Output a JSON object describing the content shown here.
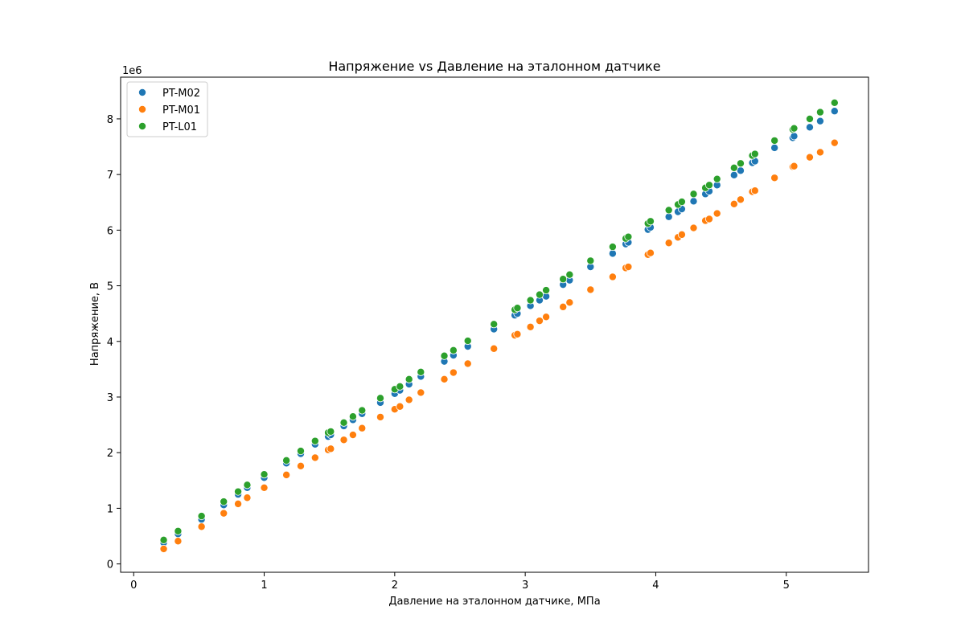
{
  "chart_data": {
    "type": "scatter",
    "title": "Напряжение vs Давление на эталонном датчике",
    "xlabel": "Давление на эталонном датчике, МПа",
    "ylabel": "Напряжение, В",
    "y_offset_label": "1e6",
    "xlim": [
      -0.1,
      5.63
    ],
    "ylim": [
      -150000,
      8750000
    ],
    "xticks": [
      0,
      1,
      2,
      3,
      4,
      5
    ],
    "yticks": [
      0,
      1000000,
      2000000,
      3000000,
      4000000,
      5000000,
      6000000,
      7000000,
      8000000
    ],
    "xtick_labels": [
      "0",
      "1",
      "2",
      "3",
      "4",
      "5"
    ],
    "ytick_labels": [
      "0",
      "1",
      "2",
      "3",
      "4",
      "5",
      "6",
      "7",
      "8"
    ],
    "grid": false,
    "legend": "top-left",
    "x": [
      0.23,
      0.34,
      0.52,
      0.69,
      0.8,
      0.87,
      1.0,
      1.17,
      1.28,
      1.39,
      1.49,
      1.51,
      1.61,
      1.68,
      1.75,
      1.89,
      2.0,
      2.04,
      2.11,
      2.2,
      2.38,
      2.45,
      2.56,
      2.76,
      2.92,
      2.94,
      3.04,
      3.11,
      3.16,
      3.29,
      3.34,
      3.5,
      3.67,
      3.77,
      3.79,
      3.94,
      3.96,
      4.1,
      4.17,
      4.2,
      4.29,
      4.38,
      4.41,
      4.47,
      4.6,
      4.65,
      4.74,
      4.76,
      4.91,
      5.05,
      5.06,
      5.18,
      5.26,
      5.37
    ],
    "series": [
      {
        "name": "PT-M02",
        "color": "#1f77b4",
        "values": [
          380000,
          540000,
          800000,
          1060000,
          1250000,
          1370000,
          1550000,
          1810000,
          1980000,
          2150000,
          2290000,
          2320000,
          2480000,
          2590000,
          2700000,
          2900000,
          3060000,
          3120000,
          3230000,
          3370000,
          3640000,
          3750000,
          3910000,
          4220000,
          4470000,
          4500000,
          4640000,
          4740000,
          4810000,
          5020000,
          5100000,
          5340000,
          5580000,
          5750000,
          5780000,
          6010000,
          6050000,
          6240000,
          6330000,
          6380000,
          6520000,
          6650000,
          6700000,
          6810000,
          6990000,
          7070000,
          7210000,
          7240000,
          7480000,
          7660000,
          7690000,
          7850000,
          7960000,
          8140000
        ]
      },
      {
        "name": "PT-M01",
        "color": "#ff7f0e",
        "values": [
          270000,
          410000,
          670000,
          910000,
          1080000,
          1190000,
          1370000,
          1600000,
          1760000,
          1910000,
          2050000,
          2070000,
          2230000,
          2320000,
          2440000,
          2640000,
          2780000,
          2830000,
          2950000,
          3080000,
          3320000,
          3440000,
          3600000,
          3870000,
          4110000,
          4130000,
          4260000,
          4370000,
          4440000,
          4620000,
          4700000,
          4930000,
          5160000,
          5320000,
          5340000,
          5560000,
          5590000,
          5770000,
          5870000,
          5920000,
          6040000,
          6170000,
          6200000,
          6300000,
          6470000,
          6550000,
          6690000,
          6710000,
          6940000,
          7140000,
          7150000,
          7310000,
          7400000,
          7570000
        ]
      },
      {
        "name": "PT-L01",
        "color": "#2ca02c",
        "values": [
          430000,
          590000,
          860000,
          1120000,
          1300000,
          1420000,
          1610000,
          1860000,
          2030000,
          2210000,
          2360000,
          2380000,
          2540000,
          2650000,
          2760000,
          2980000,
          3140000,
          3190000,
          3320000,
          3450000,
          3740000,
          3840000,
          4010000,
          4310000,
          4570000,
          4600000,
          4740000,
          4840000,
          4920000,
          5120000,
          5200000,
          5450000,
          5700000,
          5850000,
          5880000,
          6120000,
          6160000,
          6360000,
          6460000,
          6510000,
          6650000,
          6760000,
          6810000,
          6920000,
          7120000,
          7200000,
          7340000,
          7370000,
          7610000,
          7810000,
          7830000,
          8000000,
          8120000,
          8290000
        ]
      }
    ]
  }
}
